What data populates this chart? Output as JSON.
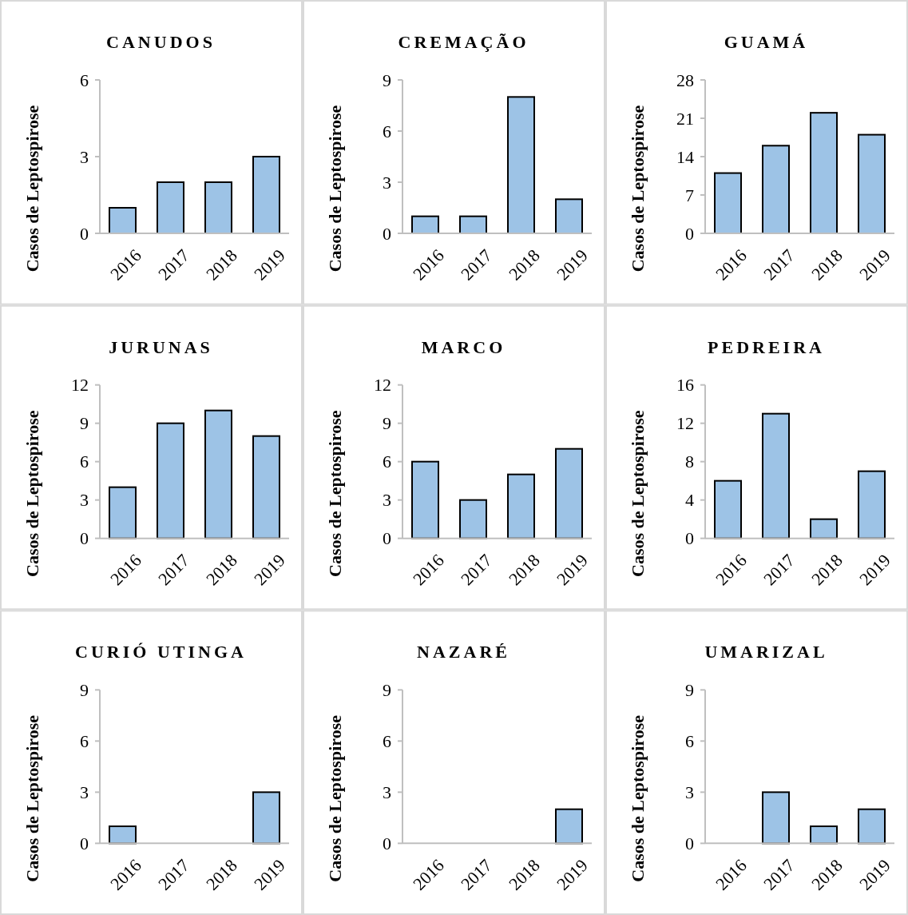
{
  "chart_data": [
    {
      "type": "bar",
      "title": "CANUDOS",
      "ylabel": "Casos de Leptospirose",
      "categories": [
        "2016",
        "2017",
        "2018",
        "2019"
      ],
      "values": [
        1,
        2,
        2,
        3
      ],
      "color": "#9dc3e6",
      "ylim": [
        0,
        6
      ],
      "yticks": [
        0,
        3,
        6
      ]
    },
    {
      "type": "bar",
      "title": "CREMAÇÃO",
      "ylabel": "Casos de Leptospirose",
      "categories": [
        "2016",
        "2017",
        "2018",
        "2019"
      ],
      "values": [
        1,
        1,
        8,
        2
      ],
      "color": "#9dc3e6",
      "ylim": [
        0,
        9
      ],
      "yticks": [
        0,
        3,
        6,
        9
      ]
    },
    {
      "type": "bar",
      "title": "GUAMÁ",
      "ylabel": "Casos de Leptospirose",
      "categories": [
        "2016",
        "2017",
        "2018",
        "2019"
      ],
      "values": [
        11,
        16,
        22,
        18
      ],
      "color": "#9dc3e6",
      "ylim": [
        0,
        28
      ],
      "yticks": [
        0,
        7,
        14,
        21,
        28
      ]
    },
    {
      "type": "bar",
      "title": "JURUNAS",
      "ylabel": "Casos de Leptospirose",
      "categories": [
        "2016",
        "2017",
        "2018",
        "2019"
      ],
      "values": [
        4,
        9,
        10,
        8
      ],
      "color": "#9dc3e6",
      "ylim": [
        0,
        12
      ],
      "yticks": [
        0,
        3,
        6,
        9,
        12
      ]
    },
    {
      "type": "bar",
      "title": "MARCO",
      "ylabel": "Casos de Leptospirose",
      "categories": [
        "2016",
        "2017",
        "2018",
        "2019"
      ],
      "values": [
        6,
        3,
        5,
        7
      ],
      "color": "#9dc3e6",
      "ylim": [
        0,
        12
      ],
      "yticks": [
        0,
        3,
        6,
        9,
        12
      ]
    },
    {
      "type": "bar",
      "title": "PEDREIRA",
      "ylabel": "Casos de Leptospirose",
      "categories": [
        "2016",
        "2017",
        "2018",
        "2019"
      ],
      "values": [
        6,
        13,
        2,
        7
      ],
      "color": "#9dc3e6",
      "ylim": [
        0,
        16
      ],
      "yticks": [
        0,
        4,
        8,
        12,
        16
      ]
    },
    {
      "type": "bar",
      "title": "CURIÓ UTINGA",
      "ylabel": "Casos de Leptospirose",
      "categories": [
        "2016",
        "2017",
        "2018",
        "2019"
      ],
      "values": [
        1,
        0,
        0,
        3
      ],
      "color": "#9dc3e6",
      "ylim": [
        0,
        9
      ],
      "yticks": [
        0,
        3,
        6,
        9
      ]
    },
    {
      "type": "bar",
      "title": "NAZARÉ",
      "ylabel": "Casos de Leptospirose",
      "categories": [
        "2016",
        "2017",
        "2018",
        "2019"
      ],
      "values": [
        0,
        0,
        0,
        2
      ],
      "color": "#9dc3e6",
      "ylim": [
        0,
        9
      ],
      "yticks": [
        0,
        3,
        6,
        9
      ]
    },
    {
      "type": "bar",
      "title": "UMARIZAL",
      "ylabel": "Casos de Leptospirose",
      "categories": [
        "2016",
        "2017",
        "2018",
        "2019"
      ],
      "values": [
        0,
        3,
        1,
        2
      ],
      "color": "#9dc3e6",
      "ylim": [
        0,
        9
      ],
      "yticks": [
        0,
        3,
        6,
        9
      ]
    }
  ]
}
